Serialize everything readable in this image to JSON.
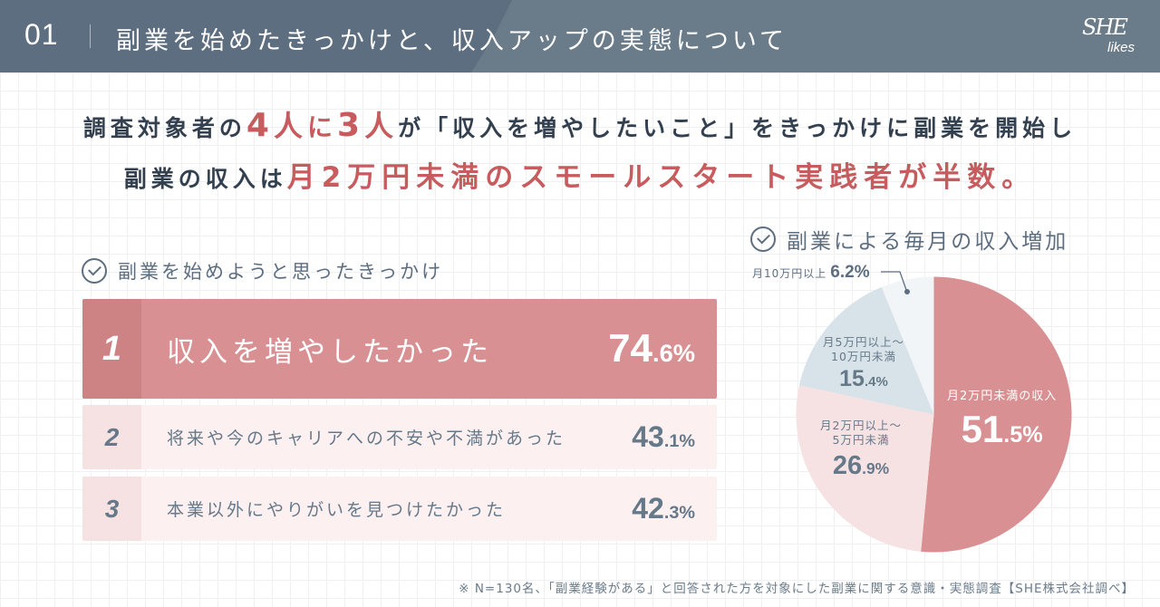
{
  "header": {
    "number": "01",
    "title": "副業を始めたきっかけと、収入アップの実態について",
    "logo": {
      "main": "SHE",
      "sub": "likes"
    }
  },
  "headline": {
    "line1": {
      "pre": "調査対象者の",
      "num1": "4",
      "unit1": "人",
      "mid": "に",
      "num2": "3",
      "unit2": "人",
      "post": "が「収入を増やしたいこと」をきっかけに副業を開始し"
    },
    "line2": {
      "pre": "副業の収入は",
      "highlight": "月2万円未満のスモールスタート実践者が半数。"
    }
  },
  "left_section": {
    "title": "副業を始めようと思ったきっかけ",
    "icon": "check-circle-icon"
  },
  "right_section": {
    "title": "副業による毎月の収入増加",
    "icon": "check-circle-icon"
  },
  "ranking": [
    {
      "rank": "1",
      "label": "収入を増やしたかった",
      "value_int": "74",
      "value_dec": ".6%"
    },
    {
      "rank": "2",
      "label": "将来や今のキャリアへの不安や不満があった",
      "value_int": "43",
      "value_dec": ".1%"
    },
    {
      "rank": "3",
      "label": "本業以外にやりがいを見つけたかった",
      "value_int": "42",
      "value_dec": ".3%"
    }
  ],
  "pie_labels": {
    "s1": {
      "title": "月2万円未満の収入",
      "value_int": "51",
      "value_dec": ".5%"
    },
    "s2": {
      "title1": "月2万円以上～",
      "title2": "5万円未満",
      "value_int": "26",
      "value_dec": ".9%"
    },
    "s3": {
      "title1": "月5万円以上～",
      "title2": "10万円未満",
      "value_int": "15",
      "value_dec": ".4%"
    },
    "s4": {
      "title": "月10万円以上",
      "value": "6.2%"
    }
  },
  "colors": {
    "header_dark": "#5d6e80",
    "header_light": "#6a7b89",
    "accent_red": "#c85b5e",
    "bar1": "#d99092",
    "bar_light": "#fcf0f1",
    "pie_s1": "#d99092",
    "pie_s2": "#f6e1e3",
    "pie_s3": "#d8e3e9",
    "pie_s4": "#f1f5f7"
  },
  "footnote": "※ N=130名、「副業経験がある」と回答された方を対象にした副業に関する意識・実態調査【SHE株式会社調べ】",
  "chart_data": [
    {
      "type": "bar",
      "title": "副業を始めようと思ったきっかけ",
      "orientation": "horizontal",
      "categories": [
        "収入を増やしたかった",
        "将来や今のキャリアへの不安や不満があった",
        "本業以外にやりがいを見つけたかった"
      ],
      "values": [
        74.6,
        43.1,
        42.3
      ],
      "unit": "%",
      "ranks": [
        1,
        2,
        3
      ]
    },
    {
      "type": "pie",
      "title": "副業による毎月の収入増加",
      "categories": [
        "月2万円未満",
        "月2万円以上～5万円未満",
        "月5万円以上～10万円未満",
        "月10万円以上"
      ],
      "values": [
        51.5,
        26.9,
        15.4,
        6.2
      ],
      "unit": "%",
      "start_angle": "12 o'clock, clockwise"
    }
  ]
}
